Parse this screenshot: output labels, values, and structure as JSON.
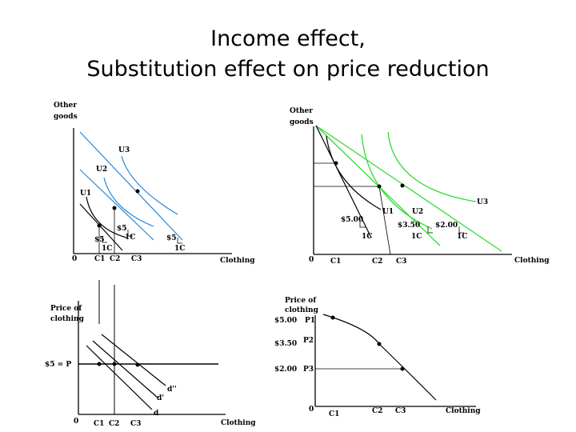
{
  "title": {
    "line1": "Income effect,",
    "line2": "Substitution effect on price reduction"
  },
  "panel_tl": {
    "y_axis_label": [
      "Other",
      "goods"
    ],
    "x_axis_label": "Clothing",
    "origin": "0",
    "curves": [
      "U1",
      "U2",
      "U3"
    ],
    "ticks": [
      "C1",
      "C2",
      "C3"
    ],
    "budget_labels": [
      "$5",
      "$5",
      "$5"
    ],
    "quantity_labels": [
      "1C",
      "1C",
      "1C"
    ]
  },
  "panel_tr": {
    "y_axis_label": [
      "Other",
      "goods"
    ],
    "x_axis_label": "Clothing",
    "origin": "0",
    "curves": [
      "U1",
      "U2",
      "U3"
    ],
    "ticks": [
      "C1",
      "C2",
      "C3"
    ],
    "budget_labels": [
      "$5.00",
      "$3.50",
      "$2.00"
    ],
    "quantity_labels": [
      "1C",
      "1C",
      "1C"
    ],
    "colors": {
      "indifference": "#33dd33",
      "budget": "#000000"
    }
  },
  "panel_bl": {
    "y_axis_label": [
      "Price of",
      "clothing"
    ],
    "x_axis_label": "Clothing",
    "origin": "0",
    "price_label": "$5 = P",
    "demand_labels": [
      "d",
      "d'",
      "d''"
    ],
    "ticks": [
      "C1",
      "C2",
      "C3"
    ]
  },
  "panel_br": {
    "y_axis_label": [
      "Price of",
      "clothing"
    ],
    "x_axis_label": "Clothing",
    "origin": "0",
    "price_values": [
      "$5.00",
      "$3.50",
      "$2.00"
    ],
    "price_names": [
      "P1",
      "P2",
      "P3"
    ],
    "ticks": [
      "C1",
      "C2",
      "C3"
    ]
  },
  "colors": {
    "blue": "#2288dd",
    "green": "#33dd33",
    "black": "#000000"
  }
}
